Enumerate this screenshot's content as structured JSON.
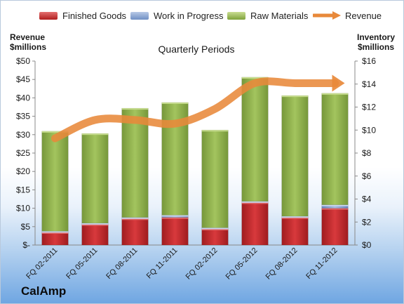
{
  "legend": {
    "finished_goods": "Finished Goods",
    "work_in_progress": "Work in Progress",
    "raw_materials": "Raw Materials",
    "revenue": "Revenue"
  },
  "axis_left_title": [
    "Revenue",
    "$millions"
  ],
  "axis_right_title": [
    "Inventory",
    "$millions"
  ],
  "chart_title": "Quarterly Periods",
  "company": "CalAmp",
  "colors": {
    "finished_goods": "#c0262a",
    "work_in_progress": "#7b97cc",
    "raw_materials": "#8db04a",
    "revenue": "#e8893a"
  },
  "chart_data": {
    "type": "bar",
    "stacked": true,
    "categories": [
      "FQ 02-2011",
      "FQ 05-2011",
      "FQ 08-2011",
      "FQ 11-2011",
      "FQ 02-2012",
      "FQ 05-2012",
      "FQ 08-2012",
      "FQ 11-2012"
    ],
    "series": [
      {
        "name": "Finished Goods",
        "axis": "right",
        "values": [
          1.1,
          1.8,
          2.3,
          2.4,
          1.4,
          3.7,
          2.4,
          3.2
        ]
      },
      {
        "name": "Work in Progress",
        "axis": "right",
        "values": [
          0.1,
          0.1,
          0.1,
          0.2,
          0.1,
          0.1,
          0.1,
          0.3
        ]
      },
      {
        "name": "Raw Materials",
        "axis": "right",
        "values": [
          8.7,
          7.8,
          9.5,
          9.8,
          8.5,
          10.8,
          10.5,
          9.7
        ]
      },
      {
        "name": "Revenue",
        "axis": "left",
        "type": "line",
        "values": [
          29,
          34,
          34,
          33,
          37,
          44,
          44,
          44
        ]
      }
    ],
    "y_left": {
      "min": 0,
      "max": 50,
      "step": 5,
      "tick_labels": [
        "$-",
        "$5",
        "$10",
        "$15",
        "$20",
        "$25",
        "$30",
        "$35",
        "$40",
        "$45",
        "$50"
      ]
    },
    "y_right": {
      "min": 0,
      "max": 16,
      "step": 2,
      "tick_labels": [
        "$0",
        "$2",
        "$4",
        "$6",
        "$8",
        "$10",
        "$12",
        "$14",
        "$16"
      ]
    },
    "legend_position": "top",
    "grid": false
  }
}
